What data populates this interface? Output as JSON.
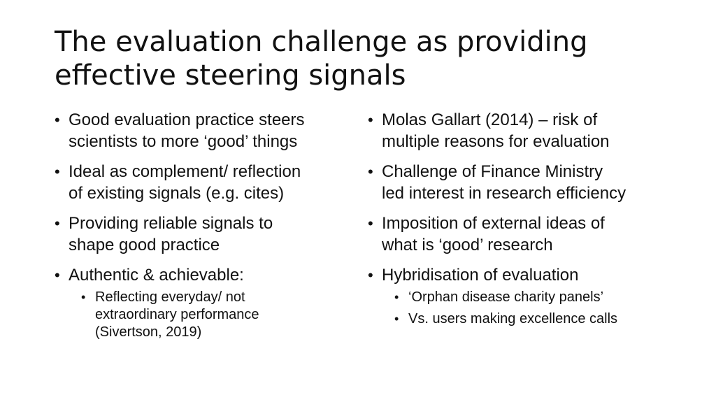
{
  "slide": {
    "title_lines": [
      "The evaluation challenge as providing",
      "effective steering signals"
    ],
    "bullet_glyph": "•",
    "left_column": {
      "items": [
        {
          "lines": [
            "Good evaluation practice steers",
            "scientists to more ‘good’ things"
          ]
        },
        {
          "lines": [
            "Ideal as complement/ reflection",
            "of existing signals (e.g. cites)"
          ]
        },
        {
          "lines": [
            "Providing reliable signals to",
            "shape good practice"
          ]
        },
        {
          "lines": [
            "Authentic & achievable:"
          ]
        }
      ],
      "subitems": [
        {
          "lines": [
            "Reflecting everyday/ not",
            "extraordinary performance",
            "(Sivertson, 2019)"
          ]
        }
      ]
    },
    "right_column": {
      "items": [
        {
          "lines": [
            "Molas Gallart (2014) – risk of",
            "multiple reasons for evaluation"
          ]
        },
        {
          "lines": [
            "Challenge of Finance Ministry",
            "led interest in research efficiency"
          ]
        },
        {
          "lines": [
            "Imposition of external ideas of",
            "what is ‘good’ research"
          ]
        },
        {
          "lines": [
            "Hybridisation of evaluation"
          ]
        }
      ],
      "subitems": [
        {
          "lines": [
            "‘Orphan disease charity panels’"
          ]
        },
        {
          "lines": [
            "Vs. users making excellence calls"
          ]
        }
      ]
    }
  }
}
